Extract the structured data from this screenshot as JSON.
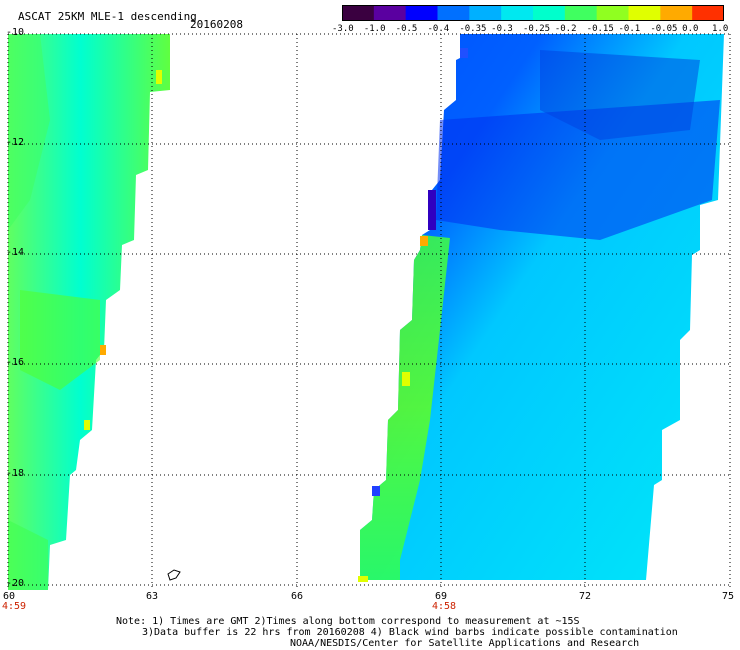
{
  "header": {
    "title": "ASCAT 25KM MLE-1 descending",
    "date": "20160208"
  },
  "colorbar": {
    "ticks": [
      "-3.0",
      "-1.0",
      "-0.5",
      "-0.4",
      "-0.35",
      "-0.3",
      "-0.25",
      "-0.2",
      "-0.15",
      "-0.1",
      "-0.05",
      "0.0",
      "1.0"
    ],
    "colors": [
      "#3a0040",
      "#5a00a0",
      "#0000ff",
      "#0070ff",
      "#00b0ff",
      "#00e8f0",
      "#00ffcc",
      "#40ff60",
      "#90ff20",
      "#e0ff00",
      "#ffaa00",
      "#ff3000"
    ]
  },
  "map": {
    "lat_labels": [
      "-10",
      "-12",
      "-14",
      "-16",
      "-18",
      "-20"
    ],
    "lon_labels": [
      "60",
      "63",
      "66",
      "69",
      "72",
      "75"
    ],
    "time_labels": [
      "4:59",
      "4:58"
    ]
  },
  "notes": {
    "line1": "Note: 1) Times are GMT 2)Times along bottom correspond to measurement at ~15S",
    "line2": "3)Data buffer is 22 hrs from 20160208 4) Black wind barbs indicate possible contamination",
    "line3": "NOAA/NESDIS/Center for Satellite Applications and Research"
  }
}
